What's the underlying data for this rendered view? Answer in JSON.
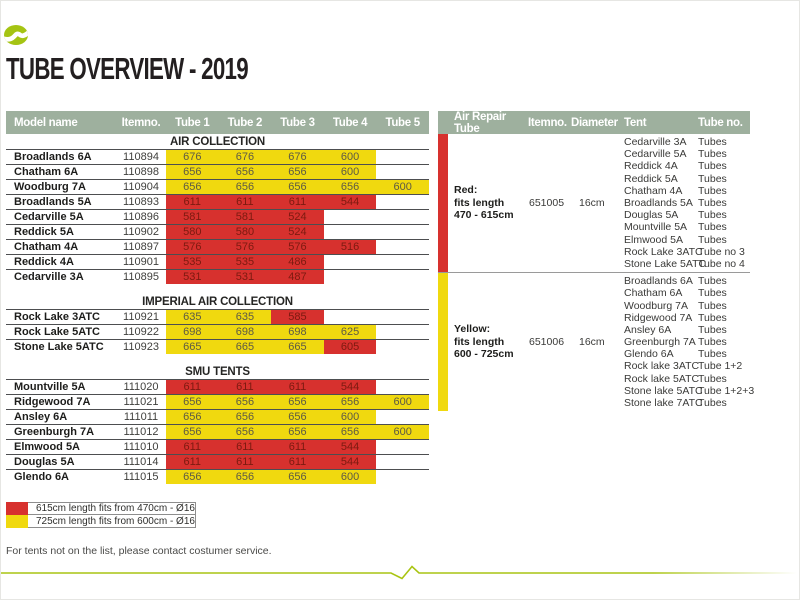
{
  "title": "TUBE OVERVIEW - 2019",
  "footer_note": "For tents not on the list, please contact costumer service.",
  "colors": {
    "red": "#d7312e",
    "yellow": "#f0d90f",
    "header_bg": "#9eb09e",
    "accent_green": "#a9c412"
  },
  "left_table": {
    "columns": [
      "Model name",
      "Itemno.",
      "Tube 1",
      "Tube 2",
      "Tube 3",
      "Tube 4",
      "Tube 5"
    ],
    "sections": [
      {
        "name": "AIR COLLECTION",
        "rows": [
          {
            "model": "Broadlands 6A",
            "item": "110894",
            "tubes": [
              [
                "676",
                "y"
              ],
              [
                "676",
                "y"
              ],
              [
                "676",
                "y"
              ],
              [
                "600",
                "y"
              ]
            ]
          },
          {
            "model": "Chatham 6A",
            "item": "110898",
            "tubes": [
              [
                "656",
                "y"
              ],
              [
                "656",
                "y"
              ],
              [
                "656",
                "y"
              ],
              [
                "600",
                "y"
              ]
            ]
          },
          {
            "model": "Woodburg 7A",
            "item": "110904",
            "tubes": [
              [
                "656",
                "y"
              ],
              [
                "656",
                "y"
              ],
              [
                "656",
                "y"
              ],
              [
                "656",
                "y"
              ],
              [
                "600",
                "y"
              ]
            ]
          },
          {
            "model": "Broadlands 5A",
            "item": "110893",
            "tubes": [
              [
                "611",
                "r"
              ],
              [
                "611",
                "r"
              ],
              [
                "611",
                "r"
              ],
              [
                "544",
                "r"
              ]
            ]
          },
          {
            "model": "Cedarville 5A",
            "item": "110896",
            "tubes": [
              [
                "581",
                "r"
              ],
              [
                "581",
                "r"
              ],
              [
                "524",
                "r"
              ]
            ]
          },
          {
            "model": "Reddick 5A",
            "item": "110902",
            "tubes": [
              [
                "580",
                "r"
              ],
              [
                "580",
                "r"
              ],
              [
                "524",
                "r"
              ]
            ]
          },
          {
            "model": "Chatham 4A",
            "item": "110897",
            "tubes": [
              [
                "576",
                "r"
              ],
              [
                "576",
                "r"
              ],
              [
                "576",
                "r"
              ],
              [
                "516",
                "r"
              ]
            ]
          },
          {
            "model": "Reddick 4A",
            "item": "110901",
            "tubes": [
              [
                "535",
                "r"
              ],
              [
                "535",
                "r"
              ],
              [
                "486",
                "r"
              ]
            ]
          },
          {
            "model": "Cedarville 3A",
            "item": "110895",
            "tubes": [
              [
                "531",
                "r"
              ],
              [
                "531",
                "r"
              ],
              [
                "487",
                "r"
              ]
            ]
          }
        ]
      },
      {
        "name": "IMPERIAL AIR COLLECTION",
        "rows": [
          {
            "model": "Rock Lake 3ATC",
            "item": "110921",
            "tubes": [
              [
                "635",
                "y"
              ],
              [
                "635",
                "y"
              ],
              [
                "585",
                "r"
              ]
            ]
          },
          {
            "model": "Rock Lake 5ATC",
            "item": "110922",
            "tubes": [
              [
                "698",
                "y"
              ],
              [
                "698",
                "y"
              ],
              [
                "698",
                "y"
              ],
              [
                "625",
                "y"
              ]
            ]
          },
          {
            "model": "Stone Lake 5ATC",
            "item": "110923",
            "tubes": [
              [
                "665",
                "y"
              ],
              [
                "665",
                "y"
              ],
              [
                "665",
                "y"
              ],
              [
                "605",
                "r"
              ]
            ]
          }
        ]
      },
      {
        "name": "SMU TENTS",
        "rows": [
          {
            "model": "Mountville 5A",
            "item": "111020",
            "tubes": [
              [
                "611",
                "r"
              ],
              [
                "611",
                "r"
              ],
              [
                "611",
                "r"
              ],
              [
                "544",
                "r"
              ]
            ]
          },
          {
            "model": "Ridgewood 7A",
            "item": "111021",
            "tubes": [
              [
                "656",
                "y"
              ],
              [
                "656",
                "y"
              ],
              [
                "656",
                "y"
              ],
              [
                "656",
                "y"
              ],
              [
                "600",
                "y"
              ]
            ]
          },
          {
            "model": "Ansley 6A",
            "item": "111011",
            "tubes": [
              [
                "656",
                "y"
              ],
              [
                "656",
                "y"
              ],
              [
                "656",
                "y"
              ],
              [
                "600",
                "y"
              ]
            ]
          },
          {
            "model": "Greenburgh 7A",
            "item": "111012",
            "tubes": [
              [
                "656",
                "y"
              ],
              [
                "656",
                "y"
              ],
              [
                "656",
                "y"
              ],
              [
                "656",
                "y"
              ],
              [
                "600",
                "y"
              ]
            ]
          },
          {
            "model": "Elmwood 5A",
            "item": "111010",
            "tubes": [
              [
                "611",
                "r"
              ],
              [
                "611",
                "r"
              ],
              [
                "611",
                "r"
              ],
              [
                "544",
                "r"
              ]
            ]
          },
          {
            "model": "Douglas 5A",
            "item": "111014",
            "tubes": [
              [
                "611",
                "r"
              ],
              [
                "611",
                "r"
              ],
              [
                "611",
                "r"
              ],
              [
                "544",
                "r"
              ]
            ]
          },
          {
            "model": "Glendo 6A",
            "item": "111015",
            "tubes": [
              [
                "656",
                "y"
              ],
              [
                "656",
                "y"
              ],
              [
                "656",
                "y"
              ],
              [
                "600",
                "y"
              ]
            ]
          }
        ]
      }
    ]
  },
  "right_table": {
    "columns": [
      "Air Repair Tube",
      "Itemno.",
      "Diameter",
      "Tent",
      "Tube no."
    ],
    "sections": [
      {
        "color": "red",
        "label_lines": [
          "Red:",
          "fits length",
          "470 - 615cm"
        ],
        "item": "651005",
        "diameter": "16cm",
        "tents": [
          {
            "tent": "Cedarville 3A",
            "tube": "Tubes"
          },
          {
            "tent": "Cedarville 5A",
            "tube": "Tubes"
          },
          {
            "tent": "Reddick 4A",
            "tube": "Tubes"
          },
          {
            "tent": "Reddick 5A",
            "tube": "Tubes"
          },
          {
            "tent": "Chatham 4A",
            "tube": "Tubes"
          },
          {
            "tent": "Broadlands 5A",
            "tube": "Tubes"
          },
          {
            "tent": "Douglas 5A",
            "tube": "Tubes"
          },
          {
            "tent": "Mountville 5A",
            "tube": "Tubes"
          },
          {
            "tent": "Elmwood 5A",
            "tube": "Tubes"
          },
          {
            "tent": "Rock Lake 3ATC",
            "tube": "Tube no 3"
          },
          {
            "tent": "Stone Lake 5ATC",
            "tube": "Tube no 4"
          }
        ]
      },
      {
        "color": "yellow",
        "label_lines": [
          "Yellow:",
          "fits length",
          "600 - 725cm"
        ],
        "item": "651006",
        "diameter": "16cm",
        "tents": [
          {
            "tent": "Broadlands 6A",
            "tube": "Tubes"
          },
          {
            "tent": "Chatham 6A",
            "tube": "Tubes"
          },
          {
            "tent": "Woodburg 7A",
            "tube": "Tubes"
          },
          {
            "tent": "Ridgewood 7A",
            "tube": "Tubes"
          },
          {
            "tent": "Ansley 6A",
            "tube": "Tubes"
          },
          {
            "tent": "Greenburgh 7A",
            "tube": "Tubes"
          },
          {
            "tent": "Glendo 6A",
            "tube": "Tubes"
          },
          {
            "tent": "Rock lake 3ATC",
            "tube": "Tube 1+2"
          },
          {
            "tent": "Rock lake 5ATC",
            "tube": "Tubes"
          },
          {
            "tent": "Stone lake 5ATC",
            "tube": "Tube 1+2+3"
          },
          {
            "tent": "Stone lake 7ATC",
            "tube": "Tubes"
          }
        ]
      }
    ]
  },
  "legend": [
    {
      "color": "red",
      "text": "615cm length fits from 470cm - Ø16"
    },
    {
      "color": "yellow",
      "text": "725cm length fits from 600cm - Ø16"
    }
  ]
}
